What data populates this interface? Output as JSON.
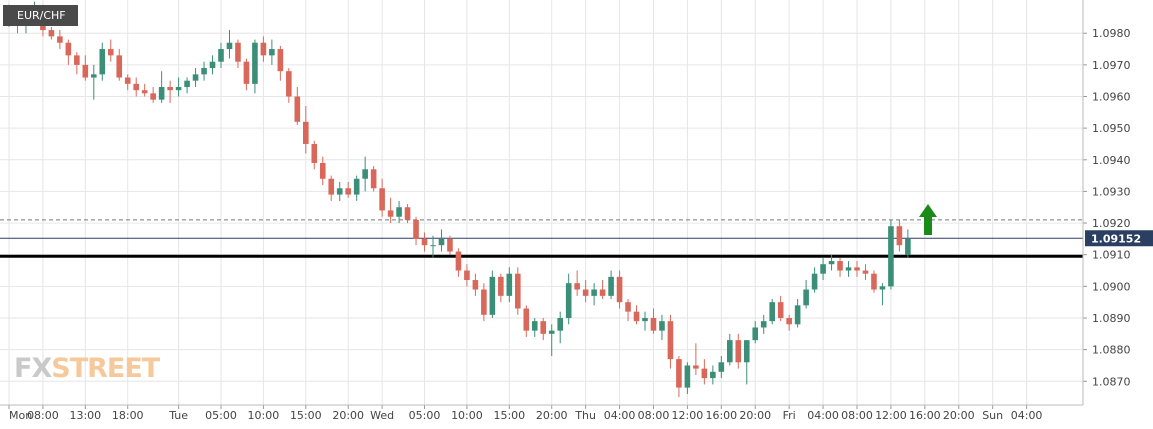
{
  "chart_data": {
    "type": "candlestick",
    "symbol": "EUR/CHF",
    "ylim": [
      1.08625,
      1.09905
    ],
    "y_ticks": [
      "1.0870",
      "1.0880",
      "1.0890",
      "1.0900",
      "1.0910",
      "1.0920",
      "1.0930",
      "1.0940",
      "1.0950",
      "1.0960",
      "1.0970",
      "1.0980"
    ],
    "x_ticks": [
      {
        "label": "Mon",
        "bar": 0
      },
      {
        "label": "08:00",
        "bar": 4
      },
      {
        "label": "13:00",
        "bar": 9
      },
      {
        "label": "18:00",
        "bar": 14
      },
      {
        "label": "Tue",
        "bar": 20
      },
      {
        "label": "05:00",
        "bar": 25
      },
      {
        "label": "10:00",
        "bar": 30
      },
      {
        "label": "15:00",
        "bar": 35
      },
      {
        "label": "20:00",
        "bar": 40
      },
      {
        "label": "Wed",
        "bar": 44
      },
      {
        "label": "05:00",
        "bar": 49
      },
      {
        "label": "10:00",
        "bar": 54
      },
      {
        "label": "15:00",
        "bar": 59
      },
      {
        "label": "20:00",
        "bar": 64
      },
      {
        "label": "Thu",
        "bar": 68
      },
      {
        "label": "04:00",
        "bar": 72
      },
      {
        "label": "08:00",
        "bar": 76
      },
      {
        "label": "12:00",
        "bar": 80
      },
      {
        "label": "16:00",
        "bar": 84
      },
      {
        "label": "20:00",
        "bar": 88
      },
      {
        "label": "Fri",
        "bar": 92
      },
      {
        "label": "04:00",
        "bar": 96
      },
      {
        "label": "08:00",
        "bar": 100
      },
      {
        "label": "12:00",
        "bar": 104
      },
      {
        "label": "16:00",
        "bar": 108
      },
      {
        "label": "20:00",
        "bar": 112
      },
      {
        "label": "Sun",
        "bar": 116
      },
      {
        "label": "04:00",
        "bar": 120
      }
    ],
    "current_price": "1.09152",
    "dashed_level": 1.0921,
    "current_level": 1.09152,
    "support_level": 1.09095,
    "arrow_direction": "up",
    "colors": {
      "bull": "#3b8f78",
      "bear": "#d9685a",
      "support": "#000000",
      "current_line": "#2b3f63",
      "dashed": "#777777",
      "arrow": "#1a8a1a",
      "grid": "#e6e6e6"
    },
    "candles": [
      [
        1.0985,
        1.0989,
        1.0982,
        1.0986
      ],
      [
        1.0986,
        1.0988,
        1.098,
        1.0983
      ],
      [
        1.0983,
        1.0988,
        1.098,
        1.0986
      ],
      [
        1.0986,
        1.099,
        1.0983,
        1.0986
      ],
      [
        1.0986,
        1.0989,
        1.0979,
        1.0981
      ],
      [
        1.0981,
        1.0982,
        1.0978,
        1.0979
      ],
      [
        1.0979,
        1.0981,
        1.0975,
        1.0977
      ],
      [
        1.0977,
        1.0978,
        1.097,
        1.0973
      ],
      [
        1.0973,
        1.0974,
        1.0967,
        1.097
      ],
      [
        1.097,
        1.0973,
        1.0965,
        1.0966
      ],
      [
        1.0966,
        1.097,
        1.0959,
        1.0967
      ],
      [
        1.0967,
        1.0977,
        1.0965,
        1.0975
      ],
      [
        1.0975,
        1.0978,
        1.0971,
        1.0973
      ],
      [
        1.0973,
        1.0975,
        1.0965,
        1.0966
      ],
      [
        1.0966,
        1.0967,
        1.0962,
        1.0964
      ],
      [
        1.0964,
        1.0966,
        1.096,
        1.0962
      ],
      [
        1.0962,
        1.0964,
        1.096,
        1.0961
      ],
      [
        1.0961,
        1.0963,
        1.0958,
        1.0959
      ],
      [
        1.0959,
        1.0968,
        1.0958,
        1.0963
      ],
      [
        1.0963,
        1.0965,
        1.0958,
        1.0962
      ],
      [
        1.0962,
        1.0966,
        1.096,
        1.0963
      ],
      [
        1.0963,
        1.0966,
        1.0961,
        1.0965
      ],
      [
        1.0965,
        1.0969,
        1.0963,
        1.0967
      ],
      [
        1.0967,
        1.0971,
        1.0965,
        1.0969
      ],
      [
        1.0969,
        1.0973,
        1.0967,
        1.0971
      ],
      [
        1.0971,
        1.0977,
        1.0969,
        1.0975
      ],
      [
        1.0975,
        1.0981,
        1.0972,
        1.0977
      ],
      [
        1.0977,
        1.0978,
        1.0969,
        1.0971
      ],
      [
        1.0971,
        1.0972,
        1.0962,
        1.0964
      ],
      [
        1.0964,
        1.0978,
        1.0961,
        1.0977
      ],
      [
        1.0977,
        1.0979,
        1.0971,
        1.0973
      ],
      [
        1.0973,
        1.0978,
        1.097,
        1.0975
      ],
      [
        1.0975,
        1.0976,
        1.0965,
        1.0968
      ],
      [
        1.0968,
        1.0969,
        1.0958,
        1.096
      ],
      [
        1.096,
        1.0963,
        1.0951,
        1.0952
      ],
      [
        1.0952,
        1.0957,
        1.0942,
        1.0945
      ],
      [
        1.0945,
        1.0946,
        1.0937,
        1.0939
      ],
      [
        1.0939,
        1.0941,
        1.0932,
        1.0934
      ],
      [
        1.0934,
        1.0935,
        1.0927,
        1.0929
      ],
      [
        1.0929,
        1.0933,
        1.0927,
        1.0931
      ],
      [
        1.0931,
        1.0933,
        1.0928,
        1.0929
      ],
      [
        1.0929,
        1.0935,
        1.0927,
        1.0934
      ],
      [
        1.0934,
        1.0941,
        1.093,
        1.0937
      ],
      [
        1.0937,
        1.0938,
        1.093,
        1.0931
      ],
      [
        1.0931,
        1.0934,
        1.0922,
        1.0924
      ],
      [
        1.0924,
        1.0928,
        1.092,
        1.0922
      ],
      [
        1.0922,
        1.0927,
        1.092,
        1.0925
      ],
      [
        1.0925,
        1.0926,
        1.092,
        1.0921
      ],
      [
        1.0921,
        1.0922,
        1.0913,
        1.0915
      ],
      [
        1.0915,
        1.0917,
        1.0911,
        1.0913
      ],
      [
        1.0913,
        1.0916,
        1.0909,
        1.0913
      ],
      [
        1.0913,
        1.0918,
        1.0911,
        1.0915
      ],
      [
        1.0915,
        1.0916,
        1.091,
        1.0911
      ],
      [
        1.0911,
        1.0912,
        1.0903,
        1.0905
      ],
      [
        1.0905,
        1.0907,
        1.09,
        1.0902
      ],
      [
        1.0902,
        1.0904,
        1.0897,
        1.0899
      ],
      [
        1.0899,
        1.0901,
        1.0889,
        1.0891
      ],
      [
        1.0891,
        1.0905,
        1.089,
        1.0903
      ],
      [
        1.0903,
        1.0904,
        1.0895,
        1.0897
      ],
      [
        1.0897,
        1.0906,
        1.0895,
        1.0904
      ],
      [
        1.0904,
        1.0906,
        1.0891,
        1.0893
      ],
      [
        1.0893,
        1.0894,
        1.0884,
        1.0886
      ],
      [
        1.0886,
        1.089,
        1.0884,
        1.0889
      ],
      [
        1.0889,
        1.089,
        1.0883,
        1.0885
      ],
      [
        1.0885,
        1.0888,
        1.0878,
        1.0886
      ],
      [
        1.0886,
        1.0892,
        1.0882,
        1.089
      ],
      [
        1.089,
        1.0904,
        1.0888,
        1.0901
      ],
      [
        1.0901,
        1.0905,
        1.0897,
        1.0899
      ],
      [
        1.0899,
        1.0902,
        1.0895,
        1.0897
      ],
      [
        1.0897,
        1.0901,
        1.0894,
        1.0899
      ],
      [
        1.0899,
        1.0902,
        1.0896,
        1.0897
      ],
      [
        1.0897,
        1.0905,
        1.0896,
        1.0903
      ],
      [
        1.0903,
        1.0905,
        1.0893,
        1.0895
      ],
      [
        1.0895,
        1.0896,
        1.0889,
        1.0892
      ],
      [
        1.0892,
        1.0894,
        1.0888,
        1.0889
      ],
      [
        1.0889,
        1.0892,
        1.0886,
        1.089
      ],
      [
        1.089,
        1.0893,
        1.0885,
        1.0886
      ],
      [
        1.0886,
        1.0891,
        1.0883,
        1.0889
      ],
      [
        1.0889,
        1.0891,
        1.0874,
        1.0877
      ],
      [
        1.0877,
        1.0878,
        1.0865,
        1.0868
      ],
      [
        1.0868,
        1.0876,
        1.0866,
        1.0875
      ],
      [
        1.0875,
        1.0882,
        1.0872,
        1.0874
      ],
      [
        1.0874,
        1.0877,
        1.0869,
        1.0871
      ],
      [
        1.0871,
        1.0875,
        1.0869,
        1.0873
      ],
      [
        1.0873,
        1.0878,
        1.0871,
        1.0876
      ],
      [
        1.0876,
        1.0885,
        1.0875,
        1.0883
      ],
      [
        1.0883,
        1.0885,
        1.0874,
        1.0876
      ],
      [
        1.0876,
        1.0883,
        1.0869,
        1.0883
      ],
      [
        1.0883,
        1.0889,
        1.0882,
        1.0887
      ],
      [
        1.0887,
        1.0891,
        1.0885,
        1.0889
      ],
      [
        1.0889,
        1.0896,
        1.0888,
        1.0895
      ],
      [
        1.0895,
        1.0897,
        1.0889,
        1.089
      ],
      [
        1.089,
        1.0891,
        1.0886,
        1.0888
      ],
      [
        1.0888,
        1.0896,
        1.0887,
        1.0894
      ],
      [
        1.0894,
        1.0902,
        1.0893,
        1.0899
      ],
      [
        1.0899,
        1.0906,
        1.0898,
        1.0904
      ],
      [
        1.0904,
        1.0909,
        1.0902,
        1.0907
      ],
      [
        1.0907,
        1.091,
        1.0905,
        1.0908
      ],
      [
        1.0908,
        1.0909,
        1.0903,
        1.0905
      ],
      [
        1.0905,
        1.0908,
        1.0903,
        1.0906
      ],
      [
        1.0906,
        1.0908,
        1.0903,
        1.0905
      ],
      [
        1.0905,
        1.0907,
        1.0902,
        1.0904
      ],
      [
        1.0904,
        1.0905,
        1.0898,
        1.0899
      ],
      [
        1.0899,
        1.0901,
        1.0894,
        1.09
      ],
      [
        1.09,
        1.0921,
        1.0899,
        1.0919
      ],
      [
        1.0919,
        1.0921,
        1.0911,
        1.0913
      ],
      [
        1.091,
        1.0918,
        1.0909,
        1.0915
      ]
    ]
  },
  "logo": {
    "fx": "FX",
    "street": "STREET"
  }
}
